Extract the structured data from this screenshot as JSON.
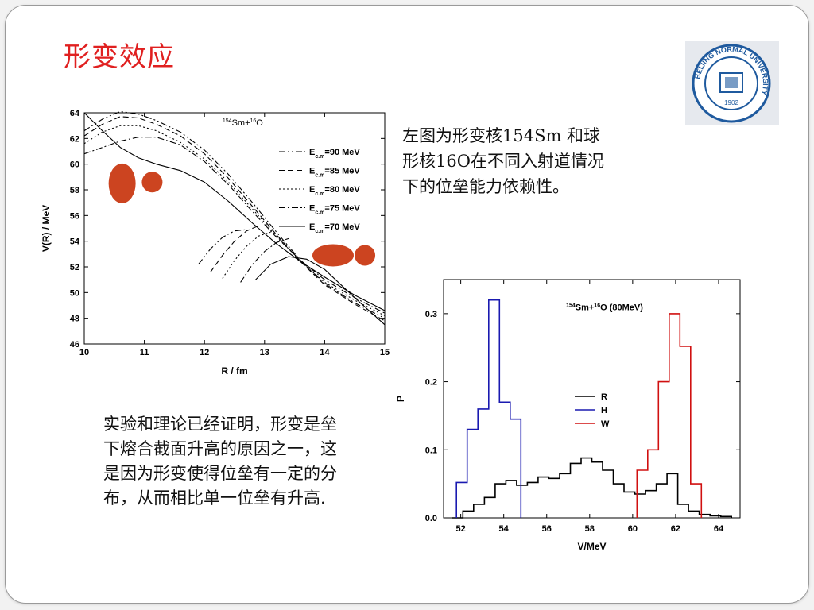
{
  "title": "形变效应",
  "description_top": "左图为形变核154Sm 和球形核16O在不同入射道情况下的位垒能力依赖性。",
  "description_bottom": "实验和理论已经证明，形变是垒下熔合截面升高的原因之一，这是因为形变使得位垒有一定的分布，从而相比单一位垒有升高.",
  "logo": {
    "text": "BEIJING NORMAL UNIVERSITY",
    "year": "1902",
    "color": "#1f5a9e"
  },
  "chart_data": [
    {
      "type": "line",
      "annotation": {
        "mass1": "154",
        "el1": "Sm+",
        "mass2": "16",
        "el2": "O"
      },
      "xlabel": "R / fm",
      "ylabel": "V(R) / MeV",
      "xlim": [
        10,
        15
      ],
      "ylim": [
        46,
        64
      ],
      "xticks": [
        10,
        11,
        12,
        13,
        14,
        15
      ],
      "yticks": [
        46,
        48,
        50,
        52,
        54,
        56,
        58,
        60,
        62,
        64
      ],
      "legend_position": "right",
      "series": [
        {
          "label_main": "E",
          "label_sub": "c.m",
          "label_val": "=90 MeV",
          "dash": "8,3,2,3,2,3",
          "points": [
            [
              10,
              62.6
            ],
            [
              10.3,
              63.5
            ],
            [
              10.6,
              64.1
            ],
            [
              10.9,
              63.9
            ],
            [
              11.2,
              63.4
            ],
            [
              11.6,
              62.5
            ],
            [
              12.0,
              61.1
            ],
            [
              12.4,
              59.2
            ],
            [
              12.8,
              57.0
            ],
            [
              13.2,
              54.7
            ],
            [
              13.6,
              52.5
            ],
            [
              14.0,
              50.7
            ],
            [
              14.5,
              49.2
            ],
            [
              15,
              48.0
            ]
          ],
          "lower": [
            [
              11.9,
              52.2
            ],
            [
              12.1,
              53.4
            ],
            [
              12.3,
              54.3
            ],
            [
              12.5,
              54.8
            ],
            [
              12.7,
              54.9
            ]
          ]
        },
        {
          "label_main": "E",
          "label_sub": "c.m",
          "label_val": "=85 MeV",
          "dash": "7,4",
          "points": [
            [
              10,
              62.2
            ],
            [
              10.3,
              63.1
            ],
            [
              10.6,
              63.7
            ],
            [
              10.9,
              63.6
            ],
            [
              11.2,
              63.1
            ],
            [
              11.6,
              62.2
            ],
            [
              12.0,
              60.8
            ],
            [
              12.4,
              58.9
            ],
            [
              12.8,
              56.7
            ],
            [
              13.2,
              54.5
            ],
            [
              13.6,
              52.4
            ],
            [
              14.0,
              50.6
            ],
            [
              14.5,
              49.1
            ],
            [
              15,
              47.8
            ]
          ],
          "lower": [
            [
              12.1,
              51.6
            ],
            [
              12.3,
              52.9
            ],
            [
              12.5,
              54.0
            ],
            [
              12.7,
              54.8
            ],
            [
              12.9,
              55.2
            ]
          ]
        },
        {
          "label_main": "E",
          "label_sub": "c.m",
          "label_val": "=80 MeV",
          "dash": "2,3",
          "points": [
            [
              10,
              61.6
            ],
            [
              10.3,
              62.5
            ],
            [
              10.6,
              63.0
            ],
            [
              10.9,
              63.0
            ],
            [
              11.2,
              62.6
            ],
            [
              11.6,
              61.7
            ],
            [
              12.0,
              60.4
            ],
            [
              12.4,
              58.6
            ],
            [
              12.8,
              56.5
            ],
            [
              13.2,
              54.4
            ],
            [
              13.6,
              52.4
            ],
            [
              14.0,
              50.8
            ],
            [
              14.5,
              49.4
            ],
            [
              15,
              48.2
            ]
          ],
          "lower": [
            [
              12.3,
              51.1
            ],
            [
              12.5,
              52.5
            ],
            [
              12.7,
              53.6
            ],
            [
              12.9,
              54.4
            ],
            [
              13.1,
              54.7
            ]
          ]
        },
        {
          "label_main": "E",
          "label_sub": "c.m",
          "label_val": "=75 MeV",
          "dash": "8,3,2,3",
          "points": [
            [
              10,
              60.8
            ],
            [
              10.3,
              61.3
            ],
            [
              10.6,
              61.8
            ],
            [
              10.9,
              62.1
            ],
            [
              11.2,
              62.1
            ],
            [
              11.6,
              61.5
            ],
            [
              12.0,
              60.2
            ],
            [
              12.4,
              58.4
            ],
            [
              12.8,
              56.3
            ],
            [
              13.2,
              54.3
            ],
            [
              13.6,
              52.5
            ],
            [
              14.0,
              51.0
            ],
            [
              14.5,
              49.6
            ],
            [
              15,
              48.4
            ]
          ],
          "lower": [
            [
              12.6,
              50.8
            ],
            [
              12.8,
              52.2
            ],
            [
              13.0,
              53.2
            ],
            [
              13.2,
              53.9
            ],
            [
              13.4,
              54.2
            ]
          ]
        },
        {
          "label_main": "E",
          "label_sub": "c.m",
          "label_val": "=70 MeV",
          "dash": "",
          "points": [
            [
              10,
              64.0
            ],
            [
              10.3,
              62.6
            ],
            [
              10.6,
              61.3
            ],
            [
              10.9,
              60.5
            ],
            [
              11.2,
              60.0
            ],
            [
              11.6,
              59.5
            ],
            [
              12.0,
              58.6
            ],
            [
              12.4,
              57.1
            ],
            [
              12.8,
              55.4
            ],
            [
              13.2,
              53.8
            ],
            [
              13.6,
              52.4
            ],
            [
              14.0,
              51.2
            ],
            [
              14.5,
              49.8
            ],
            [
              15,
              48.6
            ]
          ],
          "lower": [
            [
              12.85,
              51.0
            ],
            [
              13.1,
              52.2
            ],
            [
              13.4,
              52.8
            ],
            [
              13.7,
              52.6
            ],
            [
              14.0,
              51.8
            ],
            [
              14.5,
              49.6
            ],
            [
              15,
              47.5
            ]
          ]
        }
      ]
    },
    {
      "type": "line",
      "annotation": {
        "mass1": "154",
        "el1": "Sm+",
        "mass2": "16",
        "el2": "O",
        "extra": "(80MeV)"
      },
      "xlabel": "V/MeV",
      "ylabel": "P",
      "xlim": [
        51.2,
        65.0
      ],
      "ylim": [
        0.0,
        0.35
      ],
      "xticks": [
        52,
        54,
        56,
        58,
        60,
        62,
        64
      ],
      "yticks": [
        0.0,
        0.1,
        0.2,
        0.3
      ],
      "ytick_labels": [
        "0.0",
        "0.1",
        "0.2",
        "0.3"
      ],
      "legend_position": "center-right",
      "series": [
        {
          "name": "R",
          "color": "#000000",
          "edges": [
            51.6,
            52.1,
            52.6,
            53.1,
            53.6,
            54.1,
            54.6,
            55.1,
            55.6,
            56.1,
            56.6,
            57.1,
            57.6,
            58.1,
            58.6,
            59.1,
            59.6,
            60.1,
            60.6,
            61.1,
            61.6,
            62.1,
            62.6,
            63.1,
            63.6,
            64.1,
            64.6
          ],
          "values": [
            0.0,
            0.01,
            0.02,
            0.03,
            0.05,
            0.055,
            0.048,
            0.052,
            0.06,
            0.058,
            0.065,
            0.08,
            0.088,
            0.082,
            0.07,
            0.05,
            0.038,
            0.035,
            0.04,
            0.05,
            0.065,
            0.02,
            0.01,
            0.005,
            0.003,
            0.002
          ]
        },
        {
          "name": "H",
          "color": "#1a1ab0",
          "edges": [
            51.8,
            52.3,
            52.8,
            53.3,
            53.8,
            54.3,
            54.8
          ],
          "values": [
            0.052,
            0.13,
            0.16,
            0.32,
            0.17,
            0.145
          ]
        },
        {
          "name": "W",
          "color": "#d01010",
          "edges": [
            60.2,
            60.7,
            61.2,
            61.7,
            62.2,
            62.7,
            63.2
          ],
          "values": [
            0.07,
            0.1,
            0.2,
            0.3,
            0.252,
            0.05
          ]
        }
      ]
    }
  ]
}
